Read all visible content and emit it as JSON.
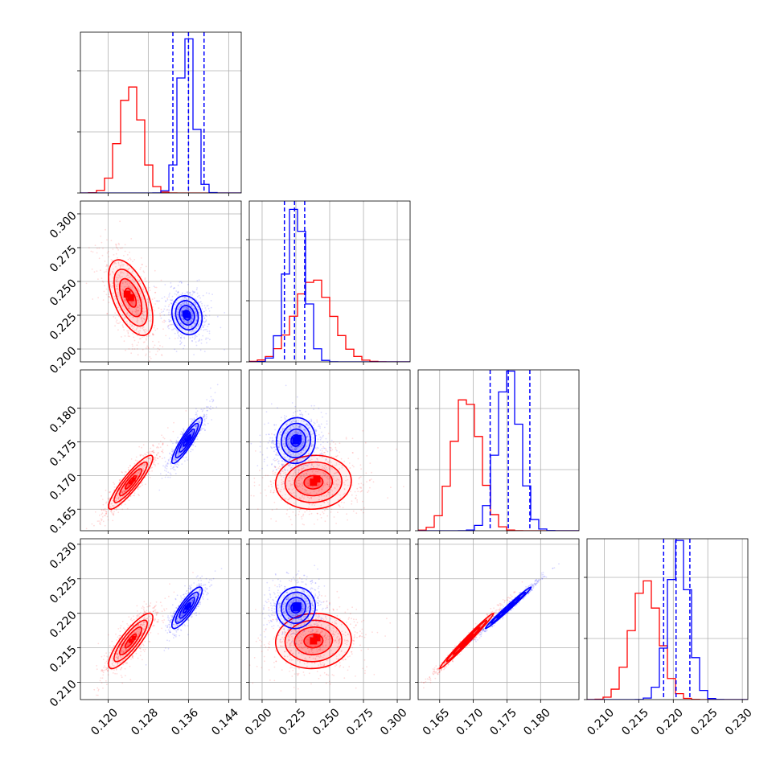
{
  "chart_data": {
    "type": "scatter",
    "subtype": "corner-plot",
    "grid": true,
    "series": [
      {
        "color": "#ff0000"
      },
      {
        "color": "#0000ff"
      }
    ],
    "params": [
      {
        "index": 0,
        "range": [
          0.1145,
          0.1465
        ],
        "ticks": [
          0.12,
          0.128,
          0.136,
          0.144
        ],
        "tick_labels": [
          "0.120",
          "0.128",
          "0.136",
          "0.144"
        ]
      },
      {
        "index": 1,
        "range": [
          0.1905,
          0.3095
        ],
        "ticks": [
          0.2,
          0.225,
          0.25,
          0.275,
          0.3
        ],
        "tick_labels": [
          "0.200",
          "0.225",
          "0.250",
          "0.275",
          "0.300"
        ]
      },
      {
        "index": 2,
        "range": [
          0.1618,
          0.1857
        ],
        "ticks": [
          0.165,
          0.17,
          0.175,
          0.18
        ],
        "tick_labels": [
          "0.165",
          "0.170",
          "0.175",
          "0.180"
        ]
      },
      {
        "index": 3,
        "range": [
          0.2075,
          0.2308
        ],
        "ticks": [
          0.21,
          0.215,
          0.22,
          0.225,
          0.23
        ],
        "tick_labels": [
          "0.210",
          "0.215",
          "0.220",
          "0.225",
          "0.230"
        ]
      }
    ],
    "posteriors": [
      {
        "color": "#ff0000",
        "mean": [
          0.1245,
          0.238,
          0.169,
          0.216
        ],
        "std": [
          0.0022,
          0.014,
          0.002,
          0.002
        ]
      },
      {
        "color": "#0000ff",
        "mean": [
          0.1357,
          0.225,
          0.1752,
          0.2208
        ],
        "std": [
          0.0015,
          0.0072,
          0.0017,
          0.0015
        ]
      }
    ],
    "correlations": {
      "0-1": {
        "red": -0.55,
        "blue": -0.15
      },
      "0-2": {
        "red": 0.9,
        "blue": 0.9
      },
      "0-3": {
        "red": 0.85,
        "blue": 0.85
      },
      "1-2": {
        "red": 0.05,
        "blue": 0.05
      },
      "1-3": {
        "red": 0.05,
        "blue": 0.05
      },
      "2-3": {
        "red": 0.99,
        "blue": 0.99
      }
    },
    "quantile_lines": [
      {
        "param": 0,
        "color": "#0000ff",
        "values": [
          0.1329,
          0.136,
          0.1391
        ]
      },
      {
        "param": 1,
        "color": "#0000ff",
        "values": [
          0.2165,
          0.224,
          0.2315
        ]
      },
      {
        "param": 2,
        "color": "#0000ff",
        "values": [
          0.1725,
          0.1752,
          0.1784
        ]
      },
      {
        "param": 3,
        "color": "#0000ff",
        "values": [
          0.2186,
          0.2204,
          0.2224
        ]
      }
    ]
  }
}
